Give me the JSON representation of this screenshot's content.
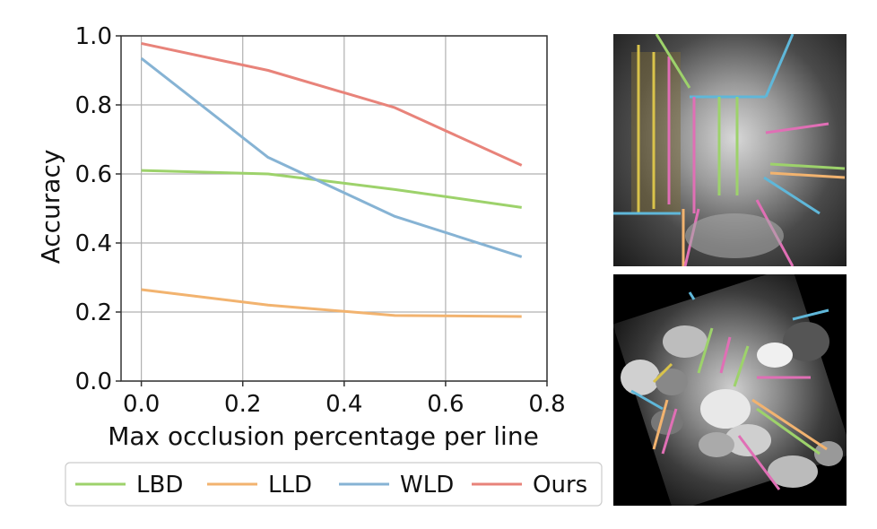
{
  "chart_data": {
    "type": "line",
    "xlabel": "Max occlusion percentage per line",
    "ylabel": "Accuracy",
    "xlim": [
      -0.04,
      0.8
    ],
    "ylim": [
      0.0,
      1.0
    ],
    "xticks": [
      "0.0",
      "0.2",
      "0.4",
      "0.6",
      "0.8"
    ],
    "yticks": [
      "0.0",
      "0.2",
      "0.4",
      "0.6",
      "0.8",
      "1.0"
    ],
    "grid": true,
    "legend_position": "bottom",
    "x": [
      0.0,
      0.25,
      0.5,
      0.75
    ],
    "series": [
      {
        "name": "LBD",
        "color": "#9dd26b",
        "values": [
          0.61,
          0.6,
          0.555,
          0.503
        ]
      },
      {
        "name": "LLD",
        "color": "#f2b36f",
        "values": [
          0.265,
          0.22,
          0.19,
          0.187
        ]
      },
      {
        "name": "WLD",
        "color": "#86b3d4",
        "values": [
          0.935,
          0.648,
          0.477,
          0.36
        ]
      },
      {
        "name": "Ours",
        "color": "#e8837a",
        "values": [
          0.978,
          0.9,
          0.792,
          0.625
        ]
      }
    ]
  },
  "images": {
    "top": "line-detection-photo-original",
    "bottom": "line-detection-photo-occluded"
  }
}
